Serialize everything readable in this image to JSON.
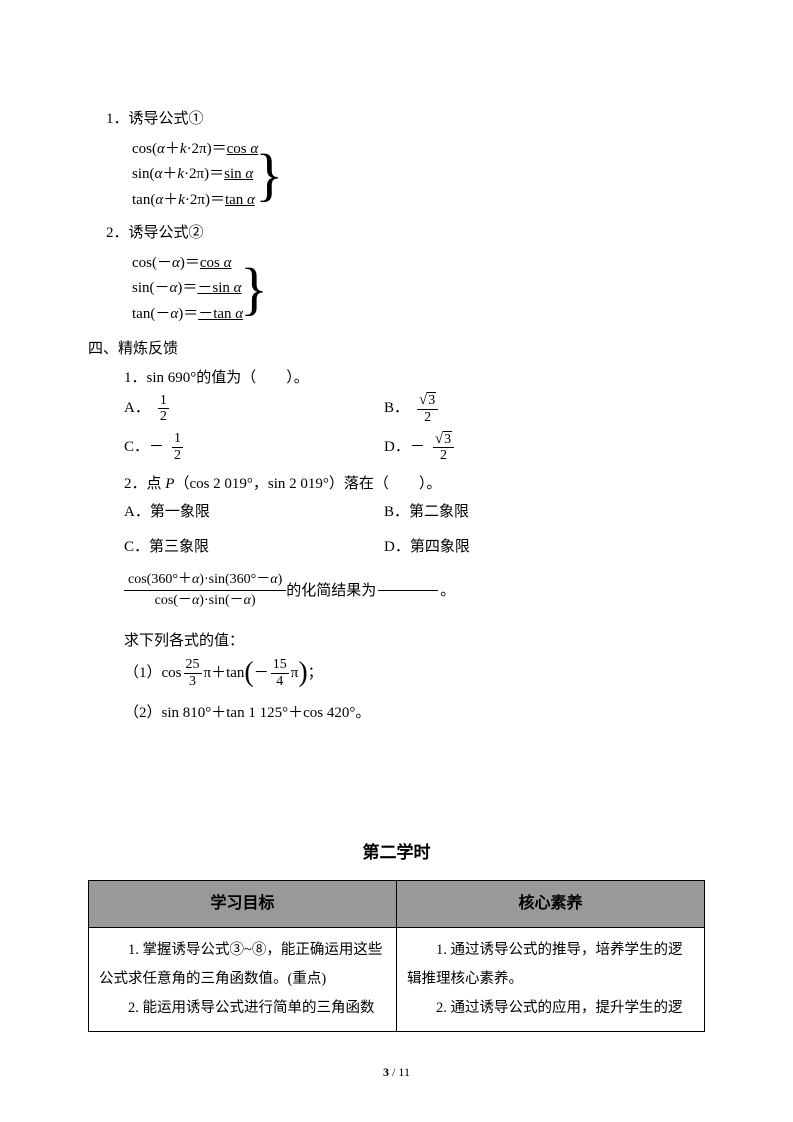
{
  "formulas": {
    "title1": "1．诱导公式①",
    "group1": [
      {
        "lhs": "cos(<span class='it'>α</span>＋<span class='it'>k</span>·2π)＝",
        "rhs": "cos <span class='it'>α</span>"
      },
      {
        "lhs": "sin(<span class='it'>α</span>＋<span class='it'>k</span>·2π)＝",
        "rhs": "sin <span class='it'>α</span>"
      },
      {
        "lhs": "tan(<span class='it'>α</span>＋<span class='it'>k</span>·2π)＝",
        "rhs": "tan <span class='it'>α</span>"
      }
    ],
    "title2": "2．诱导公式②",
    "group2": [
      {
        "lhs": "cos(－<span class='it'>α</span>)＝",
        "rhs": "cos <span class='it'>α</span>"
      },
      {
        "lhs": "sin(－<span class='it'>α</span>)＝",
        "rhs": "－sin <span class='it'>α</span>"
      },
      {
        "lhs": "tan(－<span class='it'>α</span>)＝",
        "rhs": "－tan <span class='it'>α</span>"
      }
    ]
  },
  "section4_title": "四、精炼反馈",
  "q1": {
    "text": "1．sin 690°的值为（　　）。",
    "A_prefix": "A．",
    "A_num": "1",
    "A_den": "2",
    "A_neg": false,
    "A_sqrt": false,
    "B_prefix": "B．",
    "B_num": "3",
    "B_den": "2",
    "B_neg": false,
    "B_sqrt": true,
    "C_prefix": "C．",
    "C_num": "1",
    "C_den": "2",
    "C_neg": true,
    "C_sqrt": false,
    "D_prefix": "D．",
    "D_num": "3",
    "D_den": "2",
    "D_neg": true,
    "D_sqrt": true
  },
  "q2": {
    "text": "2．点 <span class='it'>P</span>（cos 2 019°，sin 2 019°）落在（　　）。",
    "A": "A．第一象限",
    "B": "B．第二象限",
    "C": "C．第三象限",
    "D": "D．第四象限"
  },
  "q3": {
    "frac_num": "cos(360°＋<span class='it'>α</span>)·sin(360°－<span class='it'>α</span>)",
    "frac_den": "cos(－<span class='it'>α</span>)·sin(－<span class='it'>α</span>)",
    "tail": "的化简结果为",
    "end": "。"
  },
  "q4_title": "求下列各式的值：",
  "q4_1": {
    "prefix": "（1）cos",
    "f1_num": "25",
    "f1_den": "3",
    "mid": "π＋tan",
    "f2_num": "15",
    "f2_den": "4",
    "end": "；"
  },
  "q4_2": "（2）sin 810°＋tan 1 125°＋cos 420°。",
  "lesson_title": "第二学时",
  "table": {
    "h1": "学习目标",
    "h2": "核心素养",
    "c1": "　　1. 掌握诱导公式③~⑧，能正确运用这些公式求任意角的三角函数值。(重点)\n　　2. 能运用诱导公式进行简单的三角函数",
    "c2": "　　1. 通过诱导公式的推导，培养学生的逻辑推理核心素养。\n　　2. 通过诱导公式的应用，提升学生的逻"
  },
  "footer": {
    "current": "3",
    "total": "11"
  }
}
